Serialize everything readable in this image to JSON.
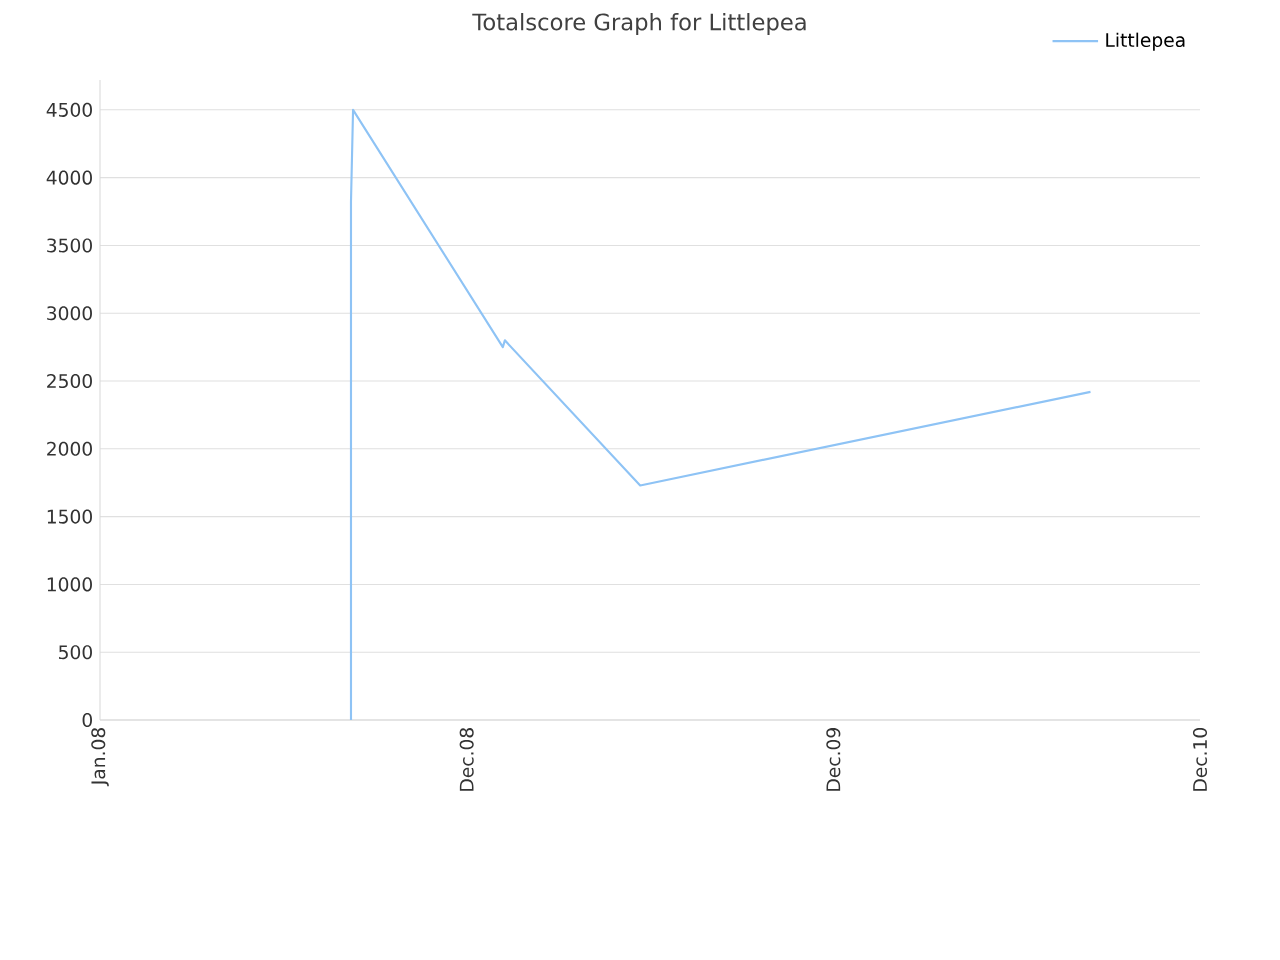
{
  "chart_data": {
    "type": "line",
    "title": "Totalscore Graph for Littlepea",
    "x": [
      "2008-08-31",
      "2008-08-31",
      "2008-09-02",
      "2009-01-25",
      "2009-01-27",
      "2009-06-07",
      "2010-08-17"
    ],
    "series": [
      {
        "name": "Littlepea",
        "color": "#8ec3f5",
        "values": [
          0,
          3820,
          4500,
          2750,
          2800,
          1730,
          2420
        ]
      }
    ],
    "xlim": [
      "2008-01-01",
      "2010-12-01"
    ],
    "xticks": [
      {
        "value": "2008-01-01",
        "label": "Jan.08"
      },
      {
        "value": "2008-12-21",
        "label": "Dec.08"
      },
      {
        "value": "2009-12-11",
        "label": "Dec.09"
      },
      {
        "value": "2010-12-01",
        "label": "Dec.10"
      }
    ],
    "ylim": [
      0,
      4720
    ],
    "yticks": [
      0,
      500,
      1000,
      1500,
      2000,
      2500,
      3000,
      3500,
      4000,
      4500
    ],
    "grid": "y",
    "legend": "top right",
    "marker": "none",
    "line_style": "solid"
  }
}
